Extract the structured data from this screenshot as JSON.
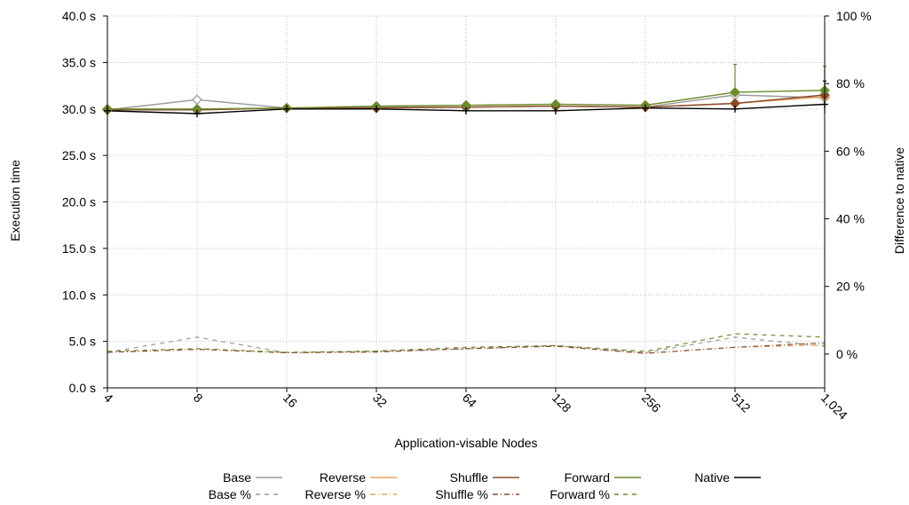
{
  "chart_data": {
    "type": "line",
    "xlabel": "Application-visable Nodes",
    "ylabel": "Execution time",
    "y2label": "Difference to native",
    "categories": [
      "4",
      "8",
      "16",
      "32",
      "64",
      "128",
      "256",
      "512",
      "1,024"
    ],
    "y_ticks": [
      "0.0  s",
      "5.0  s",
      "10.0  s",
      "15.0  s",
      "20.0  s",
      "25.0  s",
      "30.0  s",
      "35.0  s",
      "40.0  s"
    ],
    "y2_ticks": [
      "0 %",
      "20 %",
      "40 %",
      "60 %",
      "80 %",
      "100 %"
    ],
    "ylim": [
      0,
      40
    ],
    "y2lim": [
      -10,
      100
    ],
    "grid": true,
    "legend_position": "bottom",
    "series": [
      {
        "name": "Base",
        "axis": "left",
        "style": "solid",
        "marker": "diamond-open",
        "color": "#999999",
        "values": [
          29.9,
          31.0,
          30.1,
          30.2,
          30.2,
          30.3,
          30.2,
          31.5,
          31.2
        ]
      },
      {
        "name": "Reverse",
        "axis": "left",
        "style": "solid",
        "marker": "diamond",
        "color": "#e8a25a",
        "values": [
          29.9,
          29.9,
          30.1,
          30.1,
          30.2,
          30.3,
          30.2,
          30.6,
          31.3
        ]
      },
      {
        "name": "Shuffle",
        "axis": "left",
        "style": "solid",
        "marker": "diamond",
        "color": "#8b4a2b",
        "values": [
          29.9,
          29.9,
          30.1,
          30.1,
          30.2,
          30.3,
          30.2,
          30.6,
          31.5
        ]
      },
      {
        "name": "Forward",
        "axis": "left",
        "style": "solid",
        "marker": "diamond",
        "color": "#6b8a2a",
        "values": [
          30.0,
          30.0,
          30.1,
          30.3,
          30.4,
          30.5,
          30.4,
          31.8,
          32.0
        ]
      },
      {
        "name": "Native",
        "axis": "left",
        "style": "solid",
        "marker": "plus",
        "color": "#000000",
        "values": [
          29.8,
          29.5,
          30.0,
          30.0,
          29.8,
          29.8,
          30.1,
          30.0,
          30.5
        ]
      },
      {
        "name": "Base %",
        "axis": "right",
        "style": "dashed",
        "color": "#999999",
        "values": [
          0.5,
          5.0,
          0.4,
          0.8,
          1.5,
          2.5,
          0.4,
          5.0,
          2.3
        ]
      },
      {
        "name": "Reverse %",
        "axis": "right",
        "style": "dashdot",
        "color": "#e8a25a",
        "values": [
          0.5,
          1.4,
          0.4,
          0.6,
          1.6,
          2.3,
          0.2,
          2.0,
          2.7
        ]
      },
      {
        "name": "Shuffle %",
        "axis": "right",
        "style": "dashdot",
        "color": "#8b4a2b",
        "values": [
          0.5,
          1.4,
          0.4,
          0.6,
          1.6,
          2.3,
          0.2,
          2.0,
          3.3
        ]
      },
      {
        "name": "Forward %",
        "axis": "right",
        "style": "dashed",
        "color": "#6b8a2a",
        "values": [
          0.8,
          1.6,
          0.5,
          0.9,
          2.0,
          2.5,
          0.8,
          6.0,
          5.0
        ]
      }
    ],
    "error_bars": [
      {
        "series": "Forward",
        "category": "512",
        "low": 30.0,
        "high": 34.8
      },
      {
        "series": "Forward",
        "category": "1,024",
        "low": 30.5,
        "high": 34.6
      },
      {
        "series": "Native",
        "category": "1,024",
        "low": 29.5,
        "high": 33.0
      }
    ]
  }
}
